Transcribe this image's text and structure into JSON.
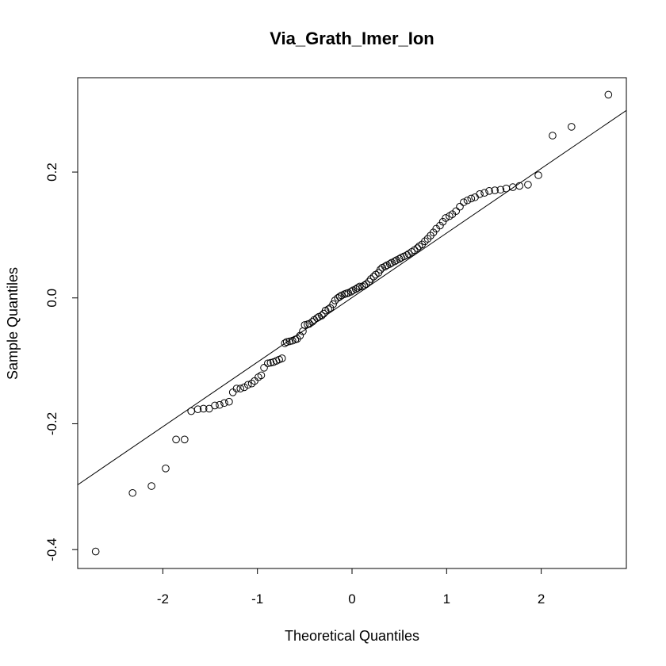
{
  "chart_data": {
    "type": "scatter",
    "subtype": "normal-qq-plot",
    "title": "Via_Grath_Imer_Ion",
    "xlabel": "Theoretical Quantiles",
    "ylabel": "Sample Quantiles",
    "xlim": [
      -2.9,
      2.9
    ],
    "ylim": [
      -0.43,
      0.35
    ],
    "x_ticks": [
      -2,
      -1,
      0,
      1,
      2
    ],
    "x_tick_labels": [
      "-2",
      "-1",
      "0",
      "1",
      "2"
    ],
    "y_ticks": [
      -0.4,
      -0.2,
      0.0,
      0.2
    ],
    "y_tick_labels": [
      "-0.4",
      "-0.2",
      "0.0",
      "0.2"
    ],
    "reference_line": {
      "x": [
        -2.9,
        2.9
      ],
      "y": [
        -0.297,
        0.298
      ]
    },
    "grid": false,
    "series": [
      {
        "points": [
          [
            -2.71,
            -0.403
          ],
          [
            -2.32,
            -0.31
          ],
          [
            -2.12,
            -0.299
          ],
          [
            -1.97,
            -0.271
          ],
          [
            -1.86,
            -0.225
          ],
          [
            -1.77,
            -0.225
          ],
          [
            -1.7,
            -0.18
          ],
          [
            -1.63,
            -0.177
          ],
          [
            -1.57,
            -0.176
          ],
          [
            -1.51,
            -0.176
          ],
          [
            -1.45,
            -0.171
          ],
          [
            -1.4,
            -0.17
          ],
          [
            -1.35,
            -0.167
          ],
          [
            -1.3,
            -0.165
          ],
          [
            -1.26,
            -0.15
          ],
          [
            -1.22,
            -0.144
          ],
          [
            -1.18,
            -0.144
          ],
          [
            -1.14,
            -0.142
          ],
          [
            -1.1,
            -0.138
          ],
          [
            -1.06,
            -0.136
          ],
          [
            -1.03,
            -0.132
          ],
          [
            -0.99,
            -0.126
          ],
          [
            -0.96,
            -0.123
          ],
          [
            -0.93,
            -0.111
          ],
          [
            -0.89,
            -0.104
          ],
          [
            -0.86,
            -0.103
          ],
          [
            -0.83,
            -0.102
          ],
          [
            -0.8,
            -0.1
          ],
          [
            -0.77,
            -0.098
          ],
          [
            -0.74,
            -0.096
          ],
          [
            -0.71,
            -0.072
          ],
          [
            -0.69,
            -0.07
          ],
          [
            -0.66,
            -0.069
          ],
          [
            -0.63,
            -0.068
          ],
          [
            -0.6,
            -0.066
          ],
          [
            -0.58,
            -0.065
          ],
          [
            -0.55,
            -0.06
          ],
          [
            -0.52,
            -0.053
          ],
          [
            -0.5,
            -0.043
          ],
          [
            -0.47,
            -0.042
          ],
          [
            -0.45,
            -0.041
          ],
          [
            -0.42,
            -0.038
          ],
          [
            -0.4,
            -0.035
          ],
          [
            -0.37,
            -0.032
          ],
          [
            -0.35,
            -0.03
          ],
          [
            -0.32,
            -0.028
          ],
          [
            -0.3,
            -0.025
          ],
          [
            -0.28,
            -0.02
          ],
          [
            -0.25,
            -0.018
          ],
          [
            -0.23,
            -0.016
          ],
          [
            -0.2,
            -0.01
          ],
          [
            -0.18,
            -0.004
          ],
          [
            -0.15,
            0.0
          ],
          [
            -0.13,
            0.002
          ],
          [
            -0.11,
            0.004
          ],
          [
            -0.08,
            0.006
          ],
          [
            -0.06,
            0.007
          ],
          [
            -0.04,
            0.008
          ],
          [
            -0.01,
            0.01
          ],
          [
            0.01,
            0.012
          ],
          [
            0.04,
            0.014
          ],
          [
            0.06,
            0.016
          ],
          [
            0.08,
            0.018
          ],
          [
            0.11,
            0.018
          ],
          [
            0.13,
            0.02
          ],
          [
            0.15,
            0.022
          ],
          [
            0.18,
            0.026
          ],
          [
            0.2,
            0.03
          ],
          [
            0.23,
            0.034
          ],
          [
            0.25,
            0.037
          ],
          [
            0.28,
            0.04
          ],
          [
            0.3,
            0.045
          ],
          [
            0.32,
            0.048
          ],
          [
            0.35,
            0.05
          ],
          [
            0.37,
            0.052
          ],
          [
            0.4,
            0.054
          ],
          [
            0.42,
            0.056
          ],
          [
            0.45,
            0.058
          ],
          [
            0.47,
            0.06
          ],
          [
            0.5,
            0.062
          ],
          [
            0.52,
            0.064
          ],
          [
            0.55,
            0.066
          ],
          [
            0.58,
            0.068
          ],
          [
            0.6,
            0.07
          ],
          [
            0.63,
            0.073
          ],
          [
            0.66,
            0.076
          ],
          [
            0.69,
            0.079
          ],
          [
            0.71,
            0.082
          ],
          [
            0.74,
            0.085
          ],
          [
            0.77,
            0.09
          ],
          [
            0.8,
            0.094
          ],
          [
            0.83,
            0.099
          ],
          [
            0.86,
            0.104
          ],
          [
            0.89,
            0.11
          ],
          [
            0.93,
            0.115
          ],
          [
            0.96,
            0.121
          ],
          [
            0.99,
            0.127
          ],
          [
            1.03,
            0.13
          ],
          [
            1.06,
            0.133
          ],
          [
            1.1,
            0.138
          ],
          [
            1.14,
            0.145
          ],
          [
            1.18,
            0.152
          ],
          [
            1.22,
            0.155
          ],
          [
            1.26,
            0.158
          ],
          [
            1.3,
            0.16
          ],
          [
            1.35,
            0.165
          ],
          [
            1.4,
            0.167
          ],
          [
            1.45,
            0.17
          ],
          [
            1.51,
            0.171
          ],
          [
            1.57,
            0.172
          ],
          [
            1.63,
            0.174
          ],
          [
            1.7,
            0.176
          ],
          [
            1.77,
            0.178
          ],
          [
            1.86,
            0.18
          ],
          [
            1.97,
            0.195
          ],
          [
            2.12,
            0.258
          ],
          [
            2.32,
            0.272
          ],
          [
            2.71,
            0.323
          ]
        ]
      }
    ]
  }
}
